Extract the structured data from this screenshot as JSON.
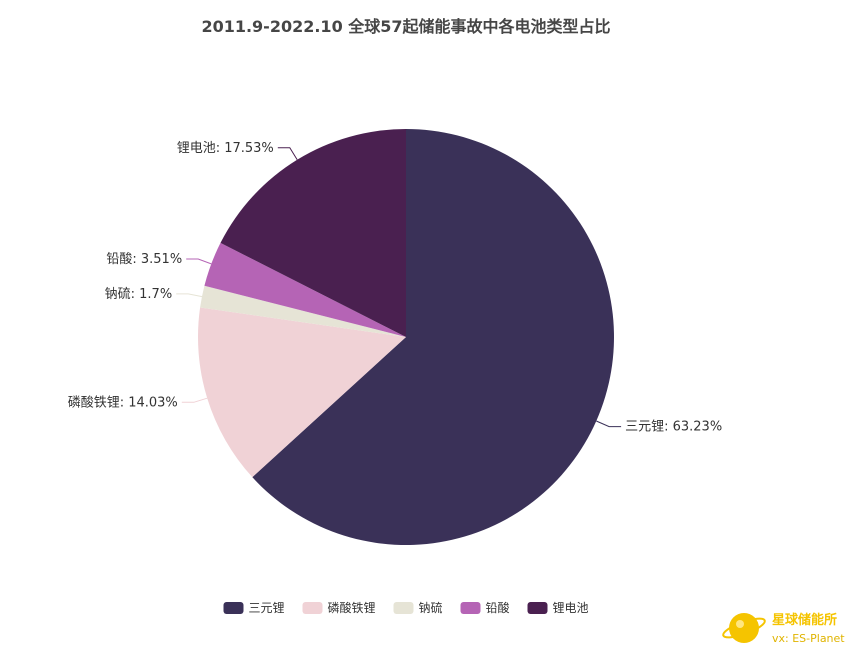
{
  "chart_data": {
    "type": "pie",
    "title": "2011.9-2022.10 全球57起储能事故中各电池类型占比",
    "series": [
      {
        "name": "三元锂",
        "value": 63.23,
        "label": "三元锂: 63.23%",
        "color": "#3a3158"
      },
      {
        "name": "磷酸铁锂",
        "value": 14.03,
        "label": "磷酸铁锂: 14.03%",
        "color": "#f0d2d6"
      },
      {
        "name": "钠硫",
        "value": 1.7,
        "label": "钠硫: 1.7%",
        "color": "#e6e4d6"
      },
      {
        "name": "铅酸",
        "value": 3.51,
        "label": "铅酸: 3.51%",
        "color": "#b564b5"
      },
      {
        "name": "锂电池",
        "value": 17.53,
        "label": "锂电池: 17.53%",
        "color": "#4a2050"
      }
    ],
    "legend_position": "bottom-center",
    "start_angle_deg": 90,
    "direction": "clockwise"
  },
  "watermark": {
    "line1": "星球储能所",
    "line2": "vx: ES-Planet",
    "color1": "#f5c400",
    "color2": "#e0b400"
  }
}
